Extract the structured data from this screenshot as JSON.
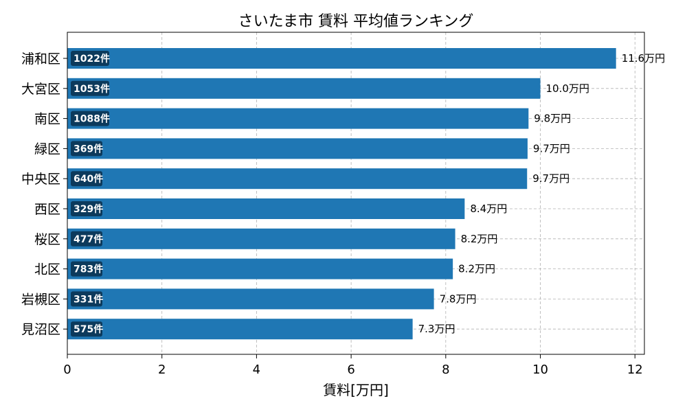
{
  "chart_data": {
    "type": "bar",
    "orientation": "horizontal",
    "title": "さいたま市 賃料 平均値ランキング",
    "xlabel": "賃料[万円]",
    "ylabel": "",
    "xlim": [
      0,
      12.2
    ],
    "xticks": [
      "0",
      "2",
      "4",
      "6",
      "8",
      "10",
      "12"
    ],
    "grid": true,
    "bar_color": "#1f77b4",
    "count_badge_color": "#0c3a5c",
    "value_suffix": "万円",
    "count_suffix": "件",
    "categories": [
      "浦和区",
      "大宮区",
      "南区",
      "緑区",
      "中央区",
      "西区",
      "桜区",
      "北区",
      "岩槻区",
      "見沼区"
    ],
    "values": [
      11.6,
      10.0,
      9.75,
      9.73,
      9.72,
      8.4,
      8.2,
      8.15,
      7.75,
      7.3
    ],
    "value_labels": [
      "11.6",
      "10.0",
      "9.8",
      "9.7",
      "9.7",
      "8.4",
      "8.2",
      "8.2",
      "7.8",
      "7.3"
    ],
    "counts": [
      1022,
      1053,
      1088,
      369,
      640,
      329,
      477,
      783,
      331,
      575
    ]
  }
}
